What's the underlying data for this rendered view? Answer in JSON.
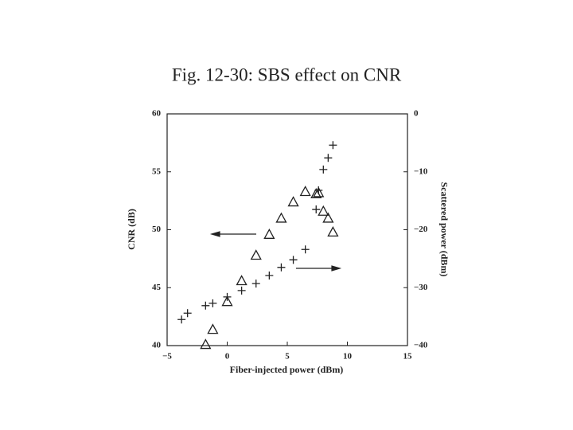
{
  "chart_data": {
    "type": "scatter",
    "title": "Fig. 12-30: SBS effect on CNR",
    "xlabel": "Fiber-injected power (dBm)",
    "ylabel": "CNR (dB)",
    "y2label": "Scattered power (dBm)",
    "xlim": [
      -5,
      15
    ],
    "xticks": [
      {
        "value": -5,
        "label": "−5"
      },
      0,
      5,
      10,
      15
    ],
    "ylim": [
      40,
      60
    ],
    "yticks": [
      40,
      45,
      50,
      55,
      60
    ],
    "y2lim": [
      -40,
      0
    ],
    "y2ticks": [
      {
        "value": -40,
        "label": "−40"
      },
      {
        "value": -30,
        "label": "−30"
      },
      {
        "value": -20,
        "label": "−20"
      },
      {
        "value": -10,
        "label": "−10"
      },
      0
    ],
    "series": [
      {
        "marker": "triangle",
        "color": "#222222",
        "x": [
          -1.8,
          -1.2,
          0,
          1.2,
          2.4,
          3.5,
          4.5,
          5.5,
          6.5,
          7.4,
          7.6,
          8.0,
          8.4,
          8.8
        ],
        "values": [
          40.1,
          41.4,
          43.8,
          45.6,
          47.8,
          49.6,
          51.0,
          52.4,
          53.3,
          53.1,
          53.2,
          51.6,
          51.0,
          49.8
        ]
      },
      {
        "marker": "plus",
        "color": "#222222",
        "axis": "y2",
        "x": [
          -3.8,
          -3.3,
          -1.8,
          -1.2,
          0,
          1.2,
          2.4,
          3.5,
          4.5,
          5.5,
          6.5,
          7.4,
          7.6,
          8.0,
          8.4,
          8.8
        ],
        "values": [
          -35.5,
          -34.4,
          -33.1,
          -32.7,
          -31.6,
          -30.5,
          -29.3,
          -27.9,
          -26.5,
          -25.2,
          -23.4,
          -16.5,
          -13.2,
          -9.6,
          -7.6,
          -5.4
        ]
      }
    ]
  }
}
